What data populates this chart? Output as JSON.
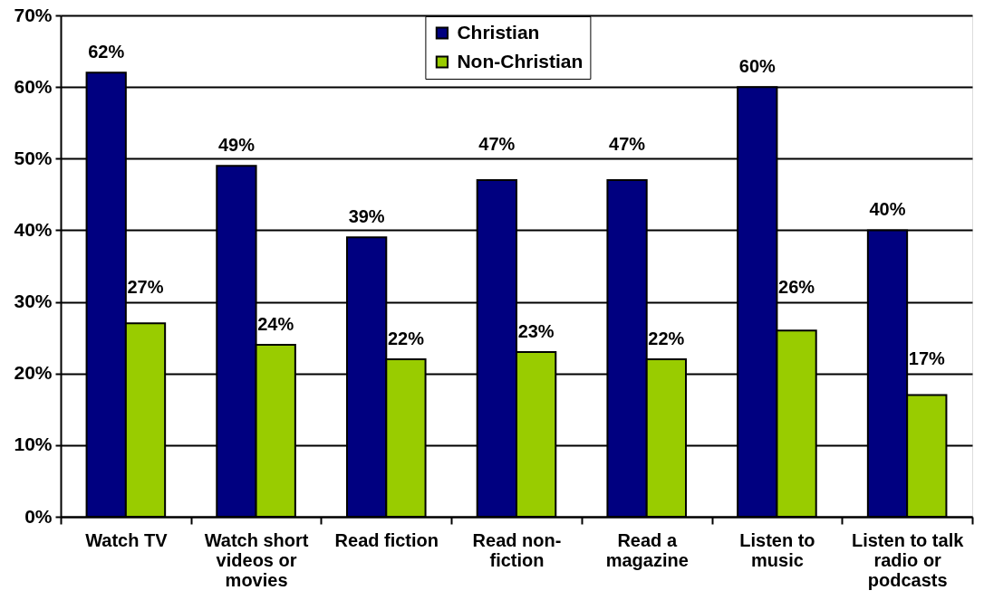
{
  "chart_data": {
    "type": "bar",
    "categories": [
      "Watch TV",
      "Watch short videos or movies",
      "Read fiction",
      "Read non-fiction",
      "Read a magazine",
      "Listen to music",
      "Listen to talk radio or podcasts"
    ],
    "series": [
      {
        "name": "Christian",
        "color": "#000080",
        "values": [
          62,
          49,
          39,
          47,
          47,
          60,
          40
        ],
        "value_labels": [
          "62%",
          "49%",
          "39%",
          "47%",
          "47%",
          "60%",
          "40%"
        ]
      },
      {
        "name": "Non-Christian",
        "color": "#99cc00",
        "values": [
          27,
          24,
          22,
          23,
          22,
          26,
          17
        ],
        "value_labels": [
          "27%",
          "24%",
          "22%",
          "23%",
          "22%",
          "26%",
          "17%"
        ]
      }
    ],
    "ylim": [
      0,
      70
    ],
    "yticks": [
      {
        "value": 0,
        "label": "0%"
      },
      {
        "value": 10,
        "label": "10%"
      },
      {
        "value": 20,
        "label": "20%"
      },
      {
        "value": 30,
        "label": "30%"
      },
      {
        "value": 40,
        "label": "40%"
      },
      {
        "value": 50,
        "label": "50%"
      },
      {
        "value": 60,
        "label": "60%"
      },
      {
        "value": 70,
        "label": "70%"
      }
    ],
    "grid": "y",
    "legend": "top"
  }
}
